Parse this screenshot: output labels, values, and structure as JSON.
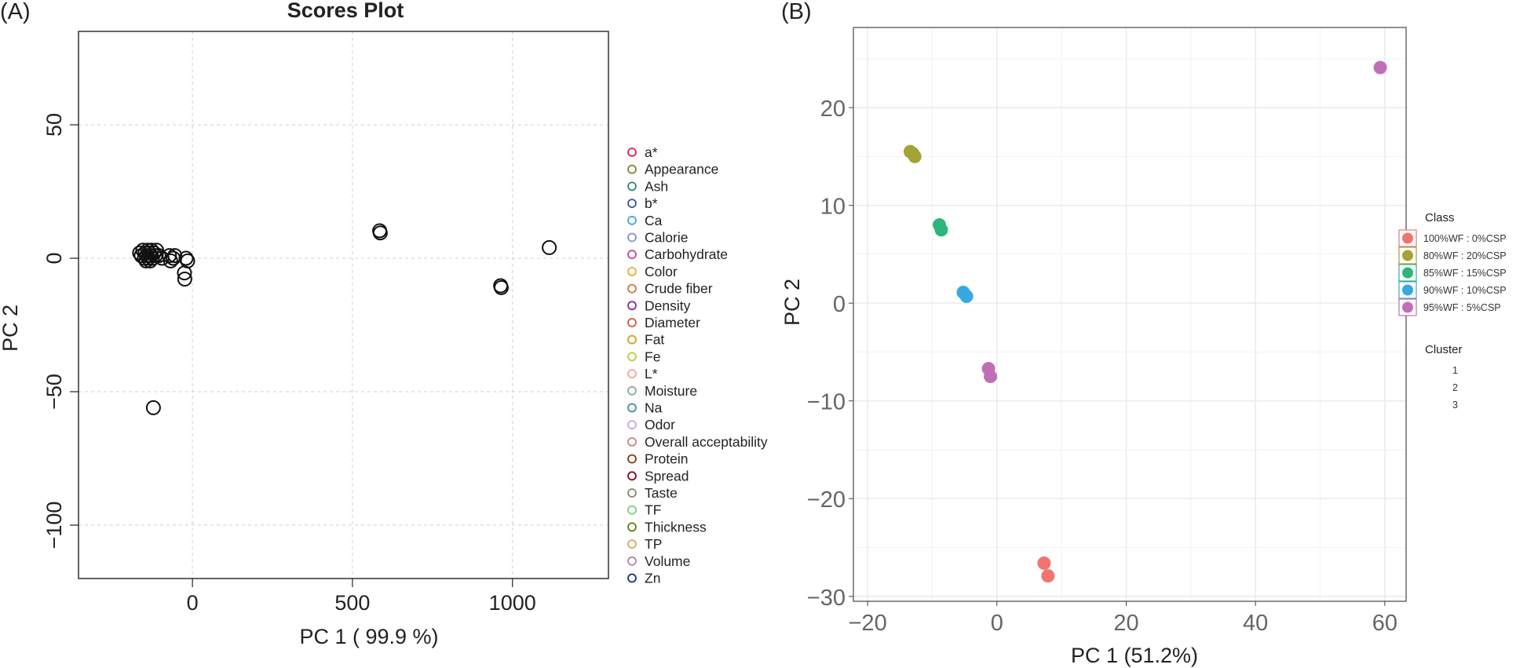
{
  "chart_data": [
    {
      "panel_label": "(A)",
      "type": "scatter",
      "title": "Scores Plot",
      "xlabel": "PC 1 ( 99.9 %)",
      "ylabel": "PC 2",
      "xlim": [
        -356,
        1300
      ],
      "ylim": [
        -120,
        85
      ],
      "xticks": [
        0,
        500,
        1000
      ],
      "xtick_labels": [
        "0",
        "500",
        "1000"
      ],
      "yticks": [
        -100,
        -50,
        0,
        50
      ],
      "ytick_labels": [
        "−100",
        "−50",
        "0",
        "50"
      ],
      "grid": true,
      "marker": "open-circle",
      "marker_color": "#111111",
      "points": [
        {
          "x": -165,
          "y": 2
        },
        {
          "x": -160,
          "y": 1
        },
        {
          "x": -155,
          "y": 3
        },
        {
          "x": -150,
          "y": 0
        },
        {
          "x": -148,
          "y": 2
        },
        {
          "x": -145,
          "y": -1
        },
        {
          "x": -142,
          "y": 1
        },
        {
          "x": -140,
          "y": 3
        },
        {
          "x": -138,
          "y": 0
        },
        {
          "x": -135,
          "y": 2
        },
        {
          "x": -132,
          "y": -1
        },
        {
          "x": -130,
          "y": 1
        },
        {
          "x": -128,
          "y": 3
        },
        {
          "x": -125,
          "y": 0
        },
        {
          "x": -120,
          "y": 2
        },
        {
          "x": -115,
          "y": 1
        },
        {
          "x": -112,
          "y": 3
        },
        {
          "x": -105,
          "y": 1
        },
        {
          "x": -95,
          "y": 0
        },
        {
          "x": -72,
          "y": 1
        },
        {
          "x": -68,
          "y": -1
        },
        {
          "x": -60,
          "y": 0
        },
        {
          "x": -55,
          "y": 1
        },
        {
          "x": -20,
          "y": 0
        },
        {
          "x": -15,
          "y": -1
        },
        {
          "x": -25,
          "y": -5.5
        },
        {
          "x": -24,
          "y": -7.8
        },
        {
          "x": -122,
          "y": -56
        },
        {
          "x": 585,
          "y": 10.3
        },
        {
          "x": 587,
          "y": 9.5
        },
        {
          "x": 963,
          "y": -10.3
        },
        {
          "x": 965,
          "y": -11
        },
        {
          "x": 1115,
          "y": 4
        }
      ],
      "legend": {
        "placement": "right",
        "entries": [
          {
            "label": "a*",
            "color": "#e2204f"
          },
          {
            "label": "Appearance",
            "color": "#7a8a3a"
          },
          {
            "label": "Ash",
            "color": "#2e8b6e"
          },
          {
            "label": "b*",
            "color": "#3a55a8"
          },
          {
            "label": "Ca",
            "color": "#3aa8e0"
          },
          {
            "label": "Calorie",
            "color": "#8a90cc"
          },
          {
            "label": "Carbohydrate",
            "color": "#cc4499"
          },
          {
            "label": "Color",
            "color": "#f0a830"
          },
          {
            "label": "Crude fiber",
            "color": "#cc7a44"
          },
          {
            "label": "Density",
            "color": "#8a2a9a"
          },
          {
            "label": "Diameter",
            "color": "#e0553a"
          },
          {
            "label": "Fat",
            "color": "#d4a020"
          },
          {
            "label": "Fe",
            "color": "#b8d040"
          },
          {
            "label": "L*",
            "color": "#f0a890"
          },
          {
            "label": "Moisture",
            "color": "#8aa8a0"
          },
          {
            "label": "Na",
            "color": "#3a90a8"
          },
          {
            "label": "Odor",
            "color": "#c0a8e0"
          },
          {
            "label": "Overall acceptability",
            "color": "#c08a80"
          },
          {
            "label": "Protein",
            "color": "#8a3a1a"
          },
          {
            "label": "Spread",
            "color": "#8a0a1a"
          },
          {
            "label": "Taste",
            "color": "#8a8a6a"
          },
          {
            "label": "TF",
            "color": "#80d080"
          },
          {
            "label": "Thickness",
            "color": "#6a7a1a"
          },
          {
            "label": "TP",
            "color": "#d0a860"
          },
          {
            "label": "Volume",
            "color": "#b08aa0"
          },
          {
            "label": "Zn",
            "color": "#1a2a7a"
          }
        ]
      }
    },
    {
      "panel_label": "(B)",
      "type": "scatter",
      "title": "",
      "xlabel": "PC 1 (51.2%)",
      "ylabel": "PC 2",
      "xlim": [
        -22.2,
        63.3
      ],
      "ylim": [
        -30.5,
        28.2
      ],
      "xticks": [
        -20,
        0,
        20,
        40,
        60
      ],
      "xtick_labels": [
        "−20",
        "0",
        "20",
        "40",
        "60"
      ],
      "yticks": [
        -30,
        -20,
        -10,
        0,
        10,
        20
      ],
      "ytick_labels": [
        "−30",
        "−20",
        "−10",
        "0",
        "10",
        "20"
      ],
      "minor_x": [
        -10,
        10,
        30,
        50
      ],
      "minor_y": [
        -25,
        -15,
        -5,
        5,
        15,
        25
      ],
      "grid": true,
      "marker": "filled-circle",
      "series": [
        {
          "name": "100%WF : 0%CSP",
          "color": "#f07470",
          "points": [
            {
              "x": 7.3,
              "y": -26.6
            },
            {
              "x": 7.9,
              "y": -27.9
            }
          ]
        },
        {
          "name": "80%WF : 20%CSP",
          "color": "#a3a336",
          "points": [
            {
              "x": -13.4,
              "y": 15.5
            },
            {
              "x": -12.7,
              "y": 15.0
            },
            {
              "x": -13.0,
              "y": 15.3
            }
          ]
        },
        {
          "name": "85%WF : 15%CSP",
          "color": "#2fb57a",
          "points": [
            {
              "x": -8.9,
              "y": 8.0
            },
            {
              "x": -8.6,
              "y": 7.5
            }
          ]
        },
        {
          "name": "90%WF : 10%CSP",
          "color": "#38a9e0",
          "points": [
            {
              "x": -5.2,
              "y": 1.1
            },
            {
              "x": -4.7,
              "y": 0.7
            }
          ]
        },
        {
          "name": "95%WF : 5%CSP",
          "color": "#c06fb6",
          "points": [
            {
              "x": -1.3,
              "y": -6.7
            },
            {
              "x": -1.0,
              "y": -7.5
            },
            {
              "x": 59.3,
              "y": 24.1
            }
          ]
        }
      ],
      "legend": {
        "placement": "right",
        "class_title": "Class",
        "cluster_title": "Cluster",
        "cluster_entries": [
          "1",
          "2",
          "3"
        ]
      }
    }
  ]
}
